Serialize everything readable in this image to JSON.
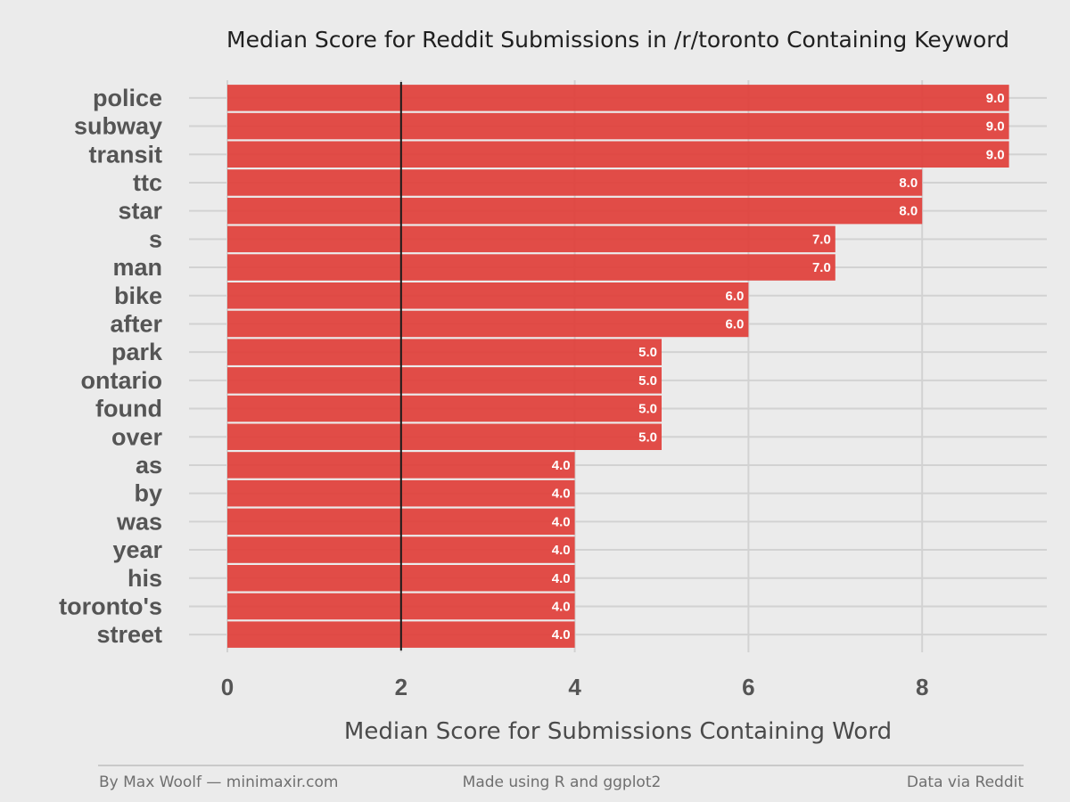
{
  "chart_data": {
    "type": "bar",
    "orientation": "horizontal",
    "title": "Median Score for Reddit Submissions in /r/toronto Containing Keyword",
    "xlabel": "Median Score for Submissions Containing Word",
    "ylabel": "",
    "categories": [
      "police",
      "subway",
      "transit",
      "ttc",
      "star",
      "s",
      "man",
      "bike",
      "after",
      "park",
      "ontario",
      "found",
      "over",
      "as",
      "by",
      "was",
      "year",
      "his",
      "toronto's",
      "street"
    ],
    "values": [
      9.0,
      9.0,
      9.0,
      8.0,
      8.0,
      7.0,
      7.0,
      6.0,
      6.0,
      5.0,
      5.0,
      5.0,
      5.0,
      4.0,
      4.0,
      4.0,
      4.0,
      4.0,
      4.0,
      4.0
    ],
    "data_labels": [
      "9.0",
      "9.0",
      "9.0",
      "8.0",
      "8.0",
      "7.0",
      "7.0",
      "6.0",
      "6.0",
      "5.0",
      "5.0",
      "5.0",
      "5.0",
      "4.0",
      "4.0",
      "4.0",
      "4.0",
      "4.0",
      "4.0",
      "4.0"
    ],
    "xlim": [
      0,
      9.0
    ],
    "x_ticks": [
      "0",
      "2",
      "4",
      "6",
      "8"
    ],
    "reference_line_x": 2,
    "bar_color": "#e0403a",
    "reference_line_color": "#1a1a1a",
    "background_color": "#ebebeb",
    "grid": true,
    "legend": "none"
  },
  "footer": {
    "left": "By Max Woolf — minimaxir.com",
    "center": "Made using R and ggplot2",
    "right": "Data via Reddit"
  }
}
